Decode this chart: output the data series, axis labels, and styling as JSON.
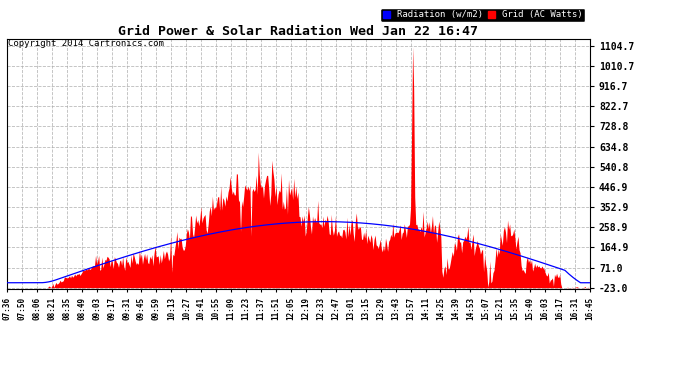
{
  "title": "Grid Power & Solar Radiation Wed Jan 22 16:47",
  "copyright": "Copyright 2014 Cartronics.com",
  "bg_color": "#ffffff",
  "plot_bg_color": "#ffffff",
  "grid_color": "#aaaaaa",
  "yticks": [
    1104.7,
    1010.7,
    916.7,
    822.7,
    728.8,
    634.8,
    540.8,
    446.9,
    352.9,
    258.9,
    164.9,
    71.0,
    -23.0
  ],
  "ymin": -23.0,
  "ymax": 1104.7,
  "legend_radiation_label": "Radiation (w/m2)",
  "legend_grid_label": "Grid (AC Watts)",
  "legend_radiation_color": "#0000ff",
  "legend_grid_color": "#ff0000",
  "radiation_line_color": "#0000ff",
  "grid_fill_color": "#ff0000",
  "xtick_labels": [
    "07:36",
    "07:50",
    "08:06",
    "08:21",
    "08:35",
    "08:49",
    "09:03",
    "09:17",
    "09:31",
    "09:45",
    "09:59",
    "10:13",
    "10:27",
    "10:41",
    "10:55",
    "11:09",
    "11:23",
    "11:37",
    "11:51",
    "12:05",
    "12:19",
    "12:33",
    "12:47",
    "13:01",
    "13:15",
    "13:29",
    "13:43",
    "13:57",
    "14:11",
    "14:25",
    "14:39",
    "14:53",
    "15:07",
    "15:21",
    "15:35",
    "15:49",
    "16:03",
    "16:17",
    "16:31",
    "16:45"
  ]
}
